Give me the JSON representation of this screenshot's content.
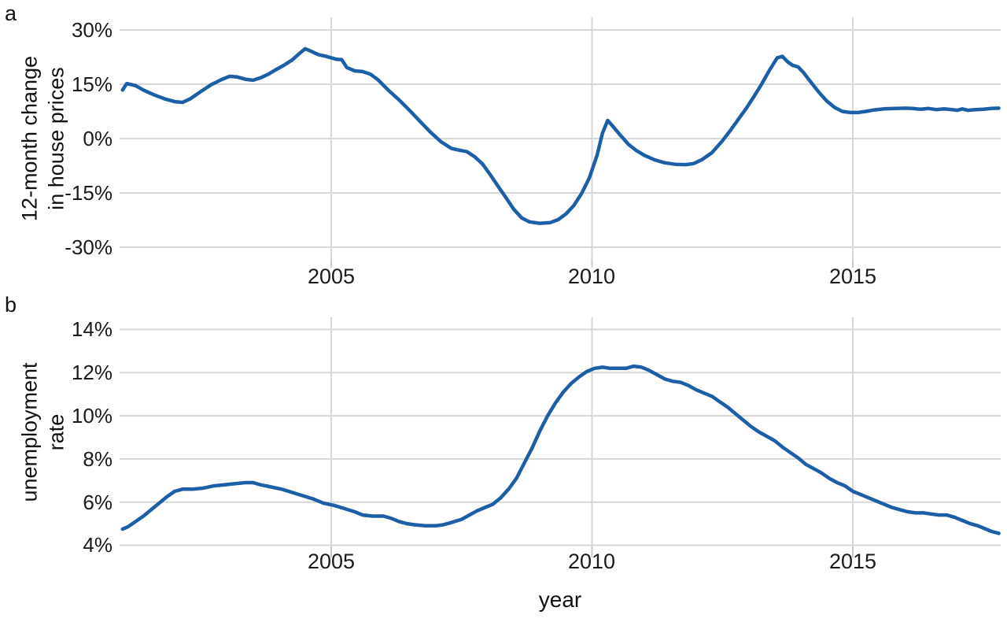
{
  "figure": {
    "xlabel": "year"
  },
  "colors": {
    "line": "#1d5fa6",
    "grid": "#d7d7d7",
    "tick": "#c9c9c9",
    "text": "#1a1a1a"
  },
  "panels": [
    {
      "label": "a",
      "title_line1": "12-month change",
      "title_line2": "in house prices",
      "yticks": [
        "30%",
        "15%",
        "0%",
        "-15%",
        "-30%"
      ],
      "xticks": [
        "2005",
        "2010",
        "2015"
      ]
    },
    {
      "label": "b",
      "title_line1": "unemployment",
      "title_line2": "rate",
      "yticks": [
        "14%",
        "12%",
        "10%",
        "8%",
        "6%",
        "4%"
      ],
      "xticks": [
        "2005",
        "2010",
        "2015"
      ]
    }
  ],
  "chart_data": [
    {
      "type": "line",
      "title": "12-month change in house prices",
      "xlabel": "year",
      "ylabel": "12-month change in house prices",
      "unit": "percent",
      "xlim": [
        2000.94,
        2017.84
      ],
      "ylim": [
        -33.5,
        33.5
      ],
      "ytick_values": [
        30,
        15,
        0,
        -15,
        -30
      ],
      "xtick_values": [
        2005,
        2010,
        2015
      ],
      "grid": "both",
      "series": [
        {
          "name": "house-price-change",
          "points": [
            [
              2001.0,
              13.4
            ],
            [
              2001.08,
              15.2
            ],
            [
              2001.25,
              14.6
            ],
            [
              2001.4,
              13.4
            ],
            [
              2001.6,
              12.1
            ],
            [
              2001.8,
              11.0
            ],
            [
              2002.0,
              10.2
            ],
            [
              2002.15,
              10.0
            ],
            [
              2002.3,
              11.0
            ],
            [
              2002.5,
              13.0
            ],
            [
              2002.7,
              14.9
            ],
            [
              2002.9,
              16.3
            ],
            [
              2003.05,
              17.2
            ],
            [
              2003.2,
              17.0
            ],
            [
              2003.35,
              16.4
            ],
            [
              2003.5,
              16.1
            ],
            [
              2003.65,
              16.8
            ],
            [
              2003.8,
              17.8
            ],
            [
              2003.95,
              19.1
            ],
            [
              2004.1,
              20.3
            ],
            [
              2004.25,
              21.7
            ],
            [
              2004.4,
              23.6
            ],
            [
              2004.5,
              24.8
            ],
            [
              2004.6,
              24.2
            ],
            [
              2004.75,
              23.2
            ],
            [
              2004.9,
              22.7
            ],
            [
              2005.0,
              22.3
            ],
            [
              2005.1,
              21.9
            ],
            [
              2005.2,
              21.8
            ],
            [
              2005.3,
              19.6
            ],
            [
              2005.45,
              18.7
            ],
            [
              2005.6,
              18.5
            ],
            [
              2005.75,
              17.8
            ],
            [
              2005.9,
              16.2
            ],
            [
              2006.1,
              13.3
            ],
            [
              2006.3,
              10.7
            ],
            [
              2006.5,
              7.8
            ],
            [
              2006.7,
              4.8
            ],
            [
              2006.9,
              1.8
            ],
            [
              2007.1,
              -0.8
            ],
            [
              2007.3,
              -2.7
            ],
            [
              2007.45,
              -3.2
            ],
            [
              2007.6,
              -3.6
            ],
            [
              2007.75,
              -5.0
            ],
            [
              2007.9,
              -7.0
            ],
            [
              2008.05,
              -10.0
            ],
            [
              2008.2,
              -13.2
            ],
            [
              2008.35,
              -16.3
            ],
            [
              2008.5,
              -19.5
            ],
            [
              2008.65,
              -21.9
            ],
            [
              2008.8,
              -23.0
            ],
            [
              2009.0,
              -23.4
            ],
            [
              2009.2,
              -23.2
            ],
            [
              2009.35,
              -22.4
            ],
            [
              2009.5,
              -20.8
            ],
            [
              2009.65,
              -18.5
            ],
            [
              2009.8,
              -15.2
            ],
            [
              2009.95,
              -10.8
            ],
            [
              2010.1,
              -4.5
            ],
            [
              2010.2,
              1.5
            ],
            [
              2010.3,
              5.0
            ],
            [
              2010.4,
              3.4
            ],
            [
              2010.55,
              0.8
            ],
            [
              2010.7,
              -1.6
            ],
            [
              2010.85,
              -3.3
            ],
            [
              2011.0,
              -4.6
            ],
            [
              2011.2,
              -5.9
            ],
            [
              2011.4,
              -6.7
            ],
            [
              2011.6,
              -7.1
            ],
            [
              2011.8,
              -7.2
            ],
            [
              2011.95,
              -6.9
            ],
            [
              2012.1,
              -5.9
            ],
            [
              2012.3,
              -3.9
            ],
            [
              2012.5,
              -0.6
            ],
            [
              2012.65,
              2.2
            ],
            [
              2012.8,
              5.2
            ],
            [
              2012.95,
              8.2
            ],
            [
              2013.1,
              11.5
            ],
            [
              2013.25,
              15.0
            ],
            [
              2013.4,
              18.8
            ],
            [
              2013.55,
              22.3
            ],
            [
              2013.65,
              22.7
            ],
            [
              2013.75,
              21.2
            ],
            [
              2013.85,
              20.2
            ],
            [
              2013.95,
              19.8
            ],
            [
              2014.05,
              18.3
            ],
            [
              2014.2,
              15.5
            ],
            [
              2014.35,
              12.8
            ],
            [
              2014.5,
              10.4
            ],
            [
              2014.65,
              8.6
            ],
            [
              2014.8,
              7.5
            ],
            [
              2014.95,
              7.2
            ],
            [
              2015.1,
              7.2
            ],
            [
              2015.25,
              7.5
            ],
            [
              2015.4,
              7.9
            ],
            [
              2015.6,
              8.2
            ],
            [
              2015.8,
              8.3
            ],
            [
              2016.0,
              8.4
            ],
            [
              2016.15,
              8.3
            ],
            [
              2016.3,
              8.1
            ],
            [
              2016.45,
              8.3
            ],
            [
              2016.6,
              8.0
            ],
            [
              2016.75,
              8.2
            ],
            [
              2016.9,
              8.0
            ],
            [
              2017.0,
              7.8
            ],
            [
              2017.1,
              8.2
            ],
            [
              2017.2,
              7.8
            ],
            [
              2017.35,
              8.0
            ],
            [
              2017.5,
              8.1
            ],
            [
              2017.65,
              8.3
            ],
            [
              2017.8,
              8.4
            ]
          ]
        }
      ]
    },
    {
      "type": "line",
      "title": "unemployment rate",
      "xlabel": "year",
      "ylabel": "unemployment rate",
      "unit": "percent",
      "xlim": [
        2000.94,
        2017.84
      ],
      "ylim": [
        3.9,
        14.6
      ],
      "ytick_values": [
        14,
        12,
        10,
        8,
        6,
        4
      ],
      "xtick_values": [
        2005,
        2010,
        2015
      ],
      "grid": "both",
      "series": [
        {
          "name": "unemployment-rate",
          "points": [
            [
              2001.0,
              4.75
            ],
            [
              2001.1,
              4.85
            ],
            [
              2001.25,
              5.1
            ],
            [
              2001.4,
              5.35
            ],
            [
              2001.55,
              5.65
            ],
            [
              2001.7,
              5.95
            ],
            [
              2001.85,
              6.25
            ],
            [
              2002.0,
              6.5
            ],
            [
              2002.15,
              6.6
            ],
            [
              2002.35,
              6.6
            ],
            [
              2002.55,
              6.65
            ],
            [
              2002.75,
              6.75
            ],
            [
              2002.95,
              6.8
            ],
            [
              2003.15,
              6.85
            ],
            [
              2003.35,
              6.9
            ],
            [
              2003.5,
              6.9
            ],
            [
              2003.65,
              6.8
            ],
            [
              2003.85,
              6.7
            ],
            [
              2004.05,
              6.6
            ],
            [
              2004.25,
              6.45
            ],
            [
              2004.45,
              6.3
            ],
            [
              2004.65,
              6.15
            ],
            [
              2004.85,
              5.95
            ],
            [
              2005.05,
              5.85
            ],
            [
              2005.25,
              5.7
            ],
            [
              2005.45,
              5.55
            ],
            [
              2005.6,
              5.4
            ],
            [
              2005.8,
              5.35
            ],
            [
              2006.0,
              5.35
            ],
            [
              2006.15,
              5.25
            ],
            [
              2006.3,
              5.1
            ],
            [
              2006.45,
              5.0
            ],
            [
              2006.6,
              4.95
            ],
            [
              2006.8,
              4.9
            ],
            [
              2007.0,
              4.9
            ],
            [
              2007.15,
              4.95
            ],
            [
              2007.3,
              5.05
            ],
            [
              2007.5,
              5.2
            ],
            [
              2007.65,
              5.4
            ],
            [
              2007.8,
              5.6
            ],
            [
              2007.95,
              5.75
            ],
            [
              2008.1,
              5.9
            ],
            [
              2008.25,
              6.2
            ],
            [
              2008.4,
              6.6
            ],
            [
              2008.55,
              7.1
            ],
            [
              2008.7,
              7.8
            ],
            [
              2008.85,
              8.5
            ],
            [
              2009.0,
              9.3
            ],
            [
              2009.15,
              10.0
            ],
            [
              2009.3,
              10.6
            ],
            [
              2009.45,
              11.1
            ],
            [
              2009.6,
              11.5
            ],
            [
              2009.75,
              11.8
            ],
            [
              2009.9,
              12.05
            ],
            [
              2010.05,
              12.2
            ],
            [
              2010.2,
              12.25
            ],
            [
              2010.35,
              12.2
            ],
            [
              2010.5,
              12.2
            ],
            [
              2010.65,
              12.2
            ],
            [
              2010.8,
              12.3
            ],
            [
              2010.95,
              12.25
            ],
            [
              2011.1,
              12.1
            ],
            [
              2011.25,
              11.9
            ],
            [
              2011.4,
              11.7
            ],
            [
              2011.55,
              11.6
            ],
            [
              2011.7,
              11.55
            ],
            [
              2011.85,
              11.4
            ],
            [
              2012.0,
              11.2
            ],
            [
              2012.15,
              11.05
            ],
            [
              2012.3,
              10.9
            ],
            [
              2012.45,
              10.65
            ],
            [
              2012.6,
              10.4
            ],
            [
              2012.75,
              10.1
            ],
            [
              2012.9,
              9.8
            ],
            [
              2013.05,
              9.5
            ],
            [
              2013.2,
              9.25
            ],
            [
              2013.35,
              9.05
            ],
            [
              2013.5,
              8.85
            ],
            [
              2013.65,
              8.55
            ],
            [
              2013.8,
              8.3
            ],
            [
              2013.95,
              8.05
            ],
            [
              2014.1,
              7.75
            ],
            [
              2014.25,
              7.55
            ],
            [
              2014.4,
              7.35
            ],
            [
              2014.55,
              7.1
            ],
            [
              2014.7,
              6.9
            ],
            [
              2014.85,
              6.75
            ],
            [
              2015.0,
              6.5
            ],
            [
              2015.15,
              6.35
            ],
            [
              2015.3,
              6.2
            ],
            [
              2015.45,
              6.05
            ],
            [
              2015.6,
              5.9
            ],
            [
              2015.75,
              5.75
            ],
            [
              2015.9,
              5.65
            ],
            [
              2016.05,
              5.55
            ],
            [
              2016.2,
              5.5
            ],
            [
              2016.35,
              5.5
            ],
            [
              2016.5,
              5.45
            ],
            [
              2016.65,
              5.4
            ],
            [
              2016.8,
              5.4
            ],
            [
              2016.95,
              5.3
            ],
            [
              2017.1,
              5.15
            ],
            [
              2017.25,
              5.0
            ],
            [
              2017.4,
              4.9
            ],
            [
              2017.55,
              4.75
            ],
            [
              2017.65,
              4.65
            ],
            [
              2017.8,
              4.55
            ]
          ]
        }
      ]
    }
  ]
}
